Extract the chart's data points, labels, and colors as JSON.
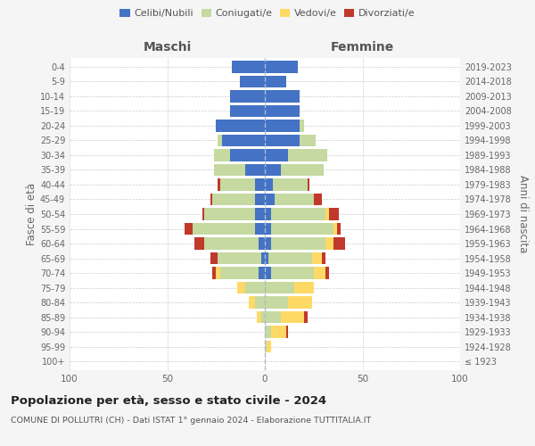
{
  "age_groups": [
    "100+",
    "95-99",
    "90-94",
    "85-89",
    "80-84",
    "75-79",
    "70-74",
    "65-69",
    "60-64",
    "55-59",
    "50-54",
    "45-49",
    "40-44",
    "35-39",
    "30-34",
    "25-29",
    "20-24",
    "15-19",
    "10-14",
    "5-9",
    "0-4"
  ],
  "birth_years": [
    "≤ 1923",
    "1924-1928",
    "1929-1933",
    "1934-1938",
    "1939-1943",
    "1944-1948",
    "1949-1953",
    "1954-1958",
    "1959-1963",
    "1964-1968",
    "1969-1973",
    "1974-1978",
    "1979-1983",
    "1984-1988",
    "1989-1993",
    "1994-1998",
    "1999-2003",
    "2004-2008",
    "2009-2013",
    "2014-2018",
    "2019-2023"
  ],
  "males": {
    "celibi": [
      0,
      0,
      0,
      0,
      0,
      0,
      3,
      2,
      3,
      5,
      5,
      5,
      5,
      10,
      18,
      22,
      25,
      18,
      18,
      13,
      17
    ],
    "coniugati": [
      0,
      0,
      0,
      2,
      5,
      10,
      20,
      22,
      28,
      32,
      26,
      22,
      18,
      16,
      8,
      2,
      0,
      0,
      0,
      0,
      0
    ],
    "vedovi": [
      0,
      0,
      0,
      2,
      3,
      4,
      2,
      0,
      0,
      0,
      0,
      0,
      0,
      0,
      0,
      0,
      0,
      0,
      0,
      0,
      0
    ],
    "divorziati": [
      0,
      0,
      0,
      0,
      0,
      0,
      2,
      4,
      5,
      4,
      1,
      1,
      1,
      0,
      0,
      0,
      0,
      0,
      0,
      0,
      0
    ]
  },
  "females": {
    "nubili": [
      0,
      0,
      0,
      0,
      0,
      0,
      3,
      2,
      3,
      3,
      3,
      5,
      4,
      8,
      12,
      18,
      18,
      18,
      18,
      11,
      17
    ],
    "coniugate": [
      0,
      1,
      3,
      8,
      12,
      15,
      22,
      22,
      28,
      32,
      28,
      20,
      18,
      22,
      20,
      8,
      2,
      0,
      0,
      0,
      0
    ],
    "vedove": [
      0,
      2,
      8,
      12,
      12,
      10,
      6,
      5,
      4,
      2,
      2,
      0,
      0,
      0,
      0,
      0,
      0,
      0,
      0,
      0,
      0
    ],
    "divorziate": [
      0,
      0,
      1,
      2,
      0,
      0,
      2,
      2,
      6,
      2,
      5,
      4,
      1,
      0,
      0,
      0,
      0,
      0,
      0,
      0,
      0
    ]
  },
  "colors": {
    "celibi": "#4472c4",
    "coniugati": "#c5d9a0",
    "vedovi": "#ffd966",
    "divorziati": "#c0392b"
  },
  "title": "Popolazione per età, sesso e stato civile - 2024",
  "subtitle": "COMUNE DI POLLUTRI (CH) - Dati ISTAT 1° gennaio 2024 - Elaborazione TUTTITALIA.IT",
  "xlabel_left": "Maschi",
  "xlabel_right": "Femmine",
  "ylabel_left": "Fasce di età",
  "ylabel_right": "Anni di nascita",
  "xlim": 100,
  "bg_color": "#f5f5f5",
  "plot_bg": "#ffffff",
  "legend_labels": [
    "Celibi/Nubili",
    "Coniugati/e",
    "Vedovi/e",
    "Divorziati/e"
  ]
}
